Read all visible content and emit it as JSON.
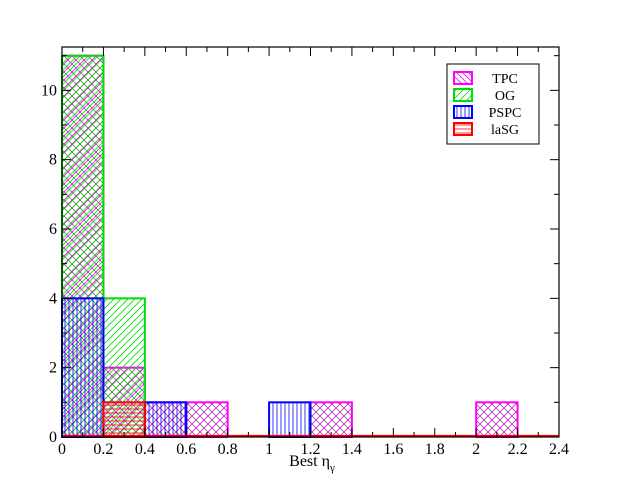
{
  "chart_data": {
    "type": "bar",
    "title": "",
    "xlabel_main": "Best η",
    "xlabel_sub": "γ",
    "ylabel": "",
    "xlim": [
      0,
      2.4
    ],
    "ylim": [
      0,
      11.25
    ],
    "x_ticks": [
      "0",
      "0.2",
      "0.4",
      "0.6",
      "0.8",
      "1",
      "1.2",
      "1.4",
      "1.6",
      "1.8",
      "2",
      "2.2",
      "2.4"
    ],
    "y_ticks": [
      "0",
      "2",
      "4",
      "6",
      "8",
      "10"
    ],
    "bin_edges": [
      0,
      0.2,
      0.4,
      0.6,
      0.8,
      1.0,
      1.2,
      1.4,
      1.6,
      1.8,
      2.0,
      2.2,
      2.4
    ],
    "legend_position": "top-right",
    "series": [
      {
        "name": "TPC",
        "color": "#ff00ff",
        "hatch": "crosshatch",
        "values": [
          11,
          2,
          1,
          1,
          0,
          0,
          1,
          0,
          0,
          0,
          1,
          0
        ]
      },
      {
        "name": "OG",
        "color": "#00dd00",
        "hatch": "diagonal",
        "values": [
          11,
          4,
          0,
          0,
          0,
          0,
          0,
          0,
          0,
          0,
          0,
          0
        ]
      },
      {
        "name": "PSPC",
        "color": "#0000ff",
        "hatch": "vertical",
        "values": [
          4,
          0,
          1,
          0,
          0,
          1,
          0,
          0,
          0,
          0,
          0,
          0
        ]
      },
      {
        "name": "laSG",
        "color": "#ff0000",
        "hatch": "horizontal",
        "values": [
          0,
          1,
          0,
          0,
          0,
          0,
          0,
          0,
          0,
          0,
          0,
          0
        ]
      }
    ]
  }
}
